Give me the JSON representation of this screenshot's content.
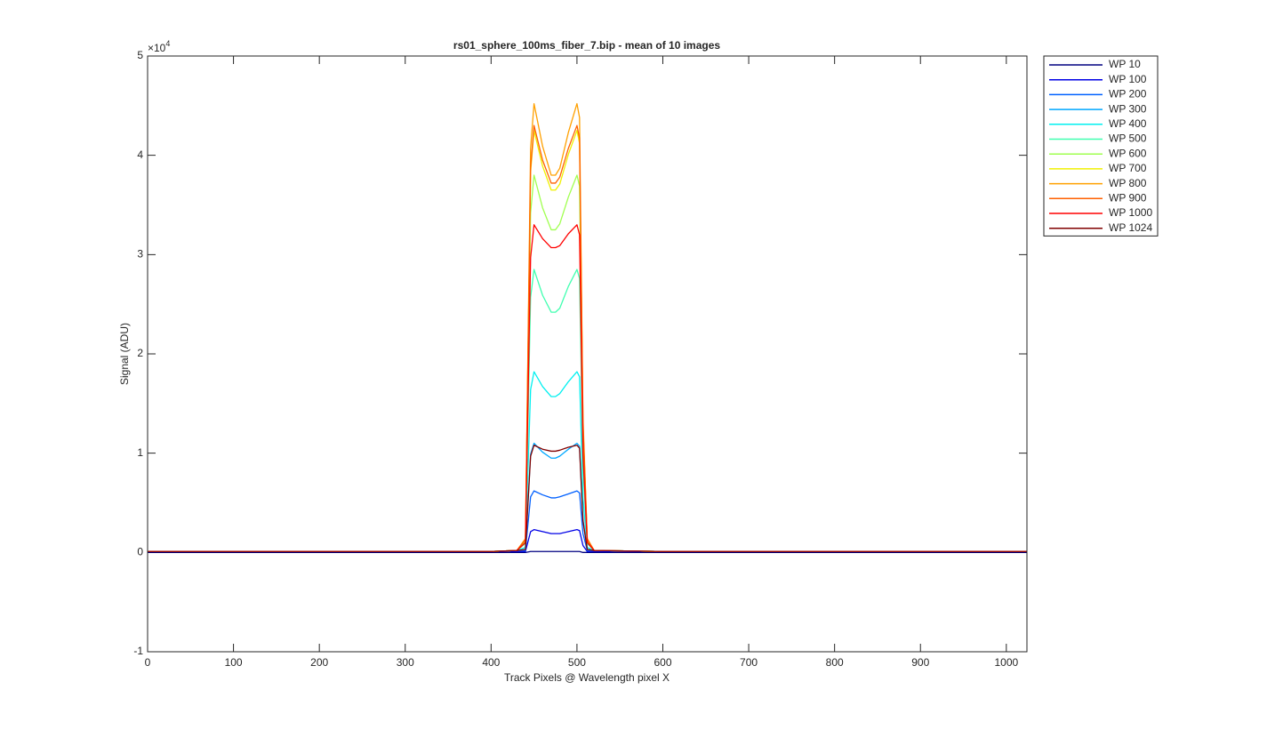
{
  "chart_data": {
    "type": "line",
    "title": "rs01_sphere_100ms_fiber_7.bip - mean of 10 images",
    "xlabel": "Track Pixels @ Wavelength pixel X",
    "ylabel": "Signal (ADU)",
    "y_multiplier": {
      "base": "×10",
      "exponent": "4"
    },
    "xlim": [
      0,
      1024
    ],
    "ylim": [
      -1,
      5
    ],
    "xticks": [
      0,
      100,
      200,
      300,
      400,
      500,
      600,
      700,
      800,
      900,
      1000
    ],
    "yticks": [
      -1,
      0,
      1,
      2,
      3,
      4,
      5
    ],
    "grid": false,
    "legend": "outside-right",
    "x": [
      0,
      100,
      200,
      300,
      400,
      430,
      440,
      446,
      450,
      460,
      470,
      475,
      480,
      490,
      500,
      503,
      507,
      512,
      520,
      600,
      700,
      800,
      900,
      1000,
      1024
    ],
    "series": [
      {
        "name": "WP 10",
        "color": "#000080",
        "values": [
          0,
          0,
          0,
          0,
          0,
          0,
          0,
          0.01,
          0.01,
          0.01,
          0.01,
          0.01,
          0.01,
          0.01,
          0.01,
          0.01,
          0,
          0,
          0,
          0,
          0,
          0,
          0,
          0,
          0
        ]
      },
      {
        "name": "WP 100",
        "color": "#0000e6",
        "values": [
          0.01,
          0.01,
          0.01,
          0.01,
          0.01,
          0.01,
          0.01,
          0.21,
          0.23,
          0.21,
          0.19,
          0.19,
          0.19,
          0.21,
          0.23,
          0.22,
          0.07,
          0.01,
          0.01,
          0.01,
          0.01,
          0.01,
          0.01,
          0.01,
          0.01
        ]
      },
      {
        "name": "WP 200",
        "color": "#0060ff",
        "values": [
          0.01,
          0.01,
          0.01,
          0.01,
          0.01,
          0.02,
          0.02,
          0.56,
          0.62,
          0.58,
          0.55,
          0.55,
          0.56,
          0.59,
          0.62,
          0.6,
          0.19,
          0.02,
          0.02,
          0.01,
          0.01,
          0.01,
          0.01,
          0.01,
          0.01
        ]
      },
      {
        "name": "WP 300",
        "color": "#00a8ff",
        "values": [
          0.01,
          0.01,
          0.01,
          0.01,
          0.01,
          0.02,
          0.03,
          0.99,
          1.1,
          1.01,
          0.95,
          0.95,
          0.97,
          1.04,
          1.1,
          1.07,
          0.33,
          0.03,
          0.02,
          0.01,
          0.01,
          0.01,
          0.01,
          0.01,
          0.01
        ]
      },
      {
        "name": "WP 400",
        "color": "#00f0f0",
        "values": [
          0.01,
          0.01,
          0.01,
          0.01,
          0.01,
          0.02,
          0.05,
          1.64,
          1.82,
          1.67,
          1.57,
          1.57,
          1.6,
          1.72,
          1.82,
          1.77,
          0.55,
          0.05,
          0.02,
          0.01,
          0.01,
          0.01,
          0.01,
          0.01,
          0.01
        ]
      },
      {
        "name": "WP 500",
        "color": "#40ffb0",
        "values": [
          0.01,
          0.01,
          0.01,
          0.01,
          0.01,
          0.02,
          0.09,
          2.57,
          2.85,
          2.59,
          2.42,
          2.42,
          2.46,
          2.68,
          2.85,
          2.76,
          0.86,
          0.09,
          0.02,
          0.01,
          0.01,
          0.01,
          0.01,
          0.01,
          0.01
        ]
      },
      {
        "name": "WP 600",
        "color": "#a0ff50",
        "values": [
          0.01,
          0.01,
          0.01,
          0.01,
          0.01,
          0.02,
          0.11,
          3.42,
          3.8,
          3.47,
          3.25,
          3.25,
          3.31,
          3.58,
          3.8,
          3.69,
          1.14,
          0.11,
          0.02,
          0.01,
          0.01,
          0.01,
          0.01,
          0.01,
          0.01
        ]
      },
      {
        "name": "WP 700",
        "color": "#f0f000",
        "values": [
          0.01,
          0.01,
          0.01,
          0.01,
          0.01,
          0.02,
          0.13,
          3.83,
          4.25,
          3.89,
          3.65,
          3.65,
          3.71,
          4.01,
          4.25,
          4.12,
          1.28,
          0.13,
          0.02,
          0.01,
          0.01,
          0.01,
          0.01,
          0.01,
          0.01
        ]
      },
      {
        "name": "WP 800",
        "color": "#ffa000",
        "values": [
          0.01,
          0.01,
          0.01,
          0.01,
          0.01,
          0.02,
          0.14,
          4.07,
          4.52,
          4.09,
          3.8,
          3.8,
          3.87,
          4.23,
          4.52,
          4.38,
          1.36,
          0.14,
          0.02,
          0.01,
          0.01,
          0.01,
          0.01,
          0.01,
          0.01
        ]
      },
      {
        "name": "WP 900",
        "color": "#ff6000",
        "values": [
          0.01,
          0.01,
          0.01,
          0.01,
          0.01,
          0.02,
          0.13,
          3.87,
          4.3,
          3.95,
          3.72,
          3.72,
          3.78,
          4.07,
          4.3,
          4.17,
          1.29,
          0.13,
          0.02,
          0.01,
          0.01,
          0.01,
          0.01,
          0.01,
          0.01
        ]
      },
      {
        "name": "WP 1000",
        "color": "#ff0000",
        "values": [
          0.01,
          0.01,
          0.01,
          0.01,
          0.01,
          0.02,
          0.1,
          2.97,
          3.3,
          3.16,
          3.07,
          3.07,
          3.09,
          3.21,
          3.3,
          3.2,
          0.99,
          0.1,
          0.02,
          0.01,
          0.01,
          0.01,
          0.01,
          0.01,
          0.01
        ]
      },
      {
        "name": "WP 1024",
        "color": "#800000",
        "values": [
          0.01,
          0.01,
          0.01,
          0.01,
          0.01,
          0.02,
          0.03,
          0.97,
          1.08,
          1.04,
          1.02,
          1.02,
          1.03,
          1.06,
          1.08,
          1.05,
          0.32,
          0.03,
          0.02,
          0.01,
          0.01,
          0.01,
          0.01,
          0.01,
          0.01
        ]
      }
    ]
  }
}
